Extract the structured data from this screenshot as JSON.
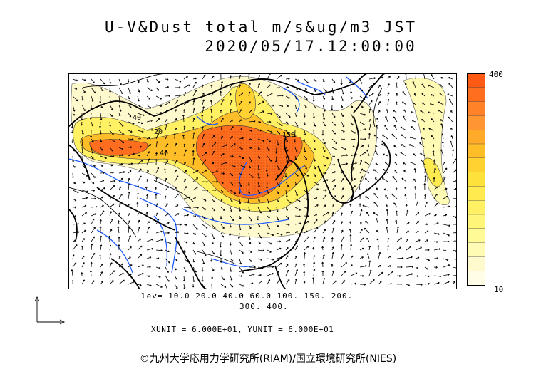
{
  "header": {
    "title": "U-V&Dust total m/s&ug/m3 JST",
    "datetime": "2020/05/17.12:00:00"
  },
  "legend": {
    "max_label": "400",
    "min_label": "10",
    "colors": [
      "#ff5a14",
      "#ff6e1e",
      "#ff8228",
      "#ff9632",
      "#ffaa28",
      "#ffbe28",
      "#ffd232",
      "#ffe13c",
      "#ffeb50",
      "#fff064",
      "#fff578",
      "#fffa96",
      "#fffab4",
      "#fffacd",
      "#fffde6"
    ]
  },
  "contour_levels": {
    "line1": "lev= 10.0 20.0 40.0 60.0 100. 150. 200.",
    "line2": "300. 400."
  },
  "map_labels": {
    "l40a": "40",
    "l20a": "20",
    "l40b": "40",
    "l150": "150"
  },
  "units_text": "XUNIT = 6.000E+01, YUNIT = 6.000E+01",
  "credit": "©九州大学応用力学研究所(RIAM)/国立環境研究所(NIES)"
}
